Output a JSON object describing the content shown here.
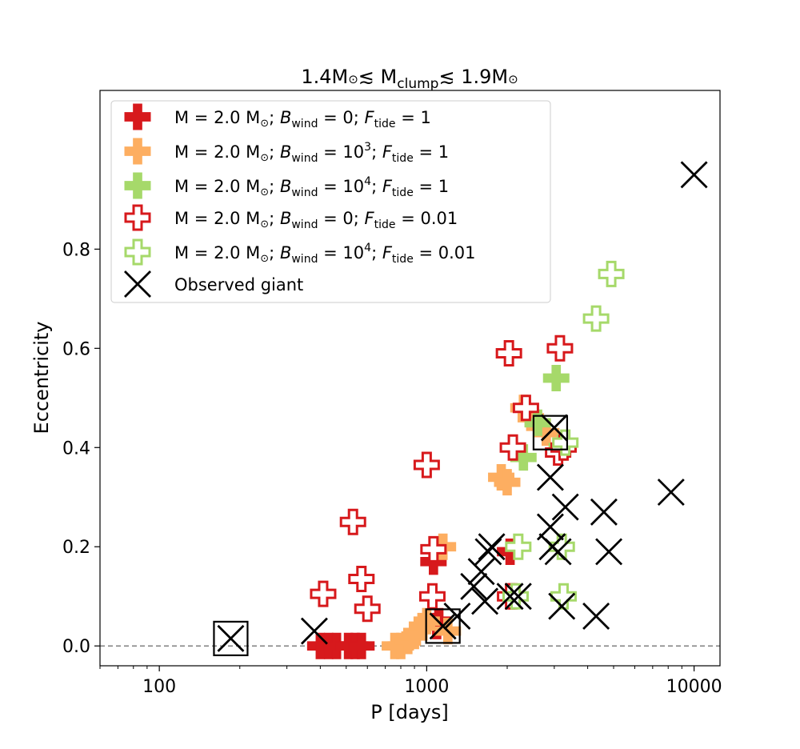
{
  "chart_data": {
    "type": "scatter",
    "title": {
      "base": "1.4M",
      "sun": "⊙",
      "mid": "≲ M",
      "sub": "clump",
      "mid2": "≲ 1.9M",
      "sun2": "⊙"
    },
    "xlabel": "P [days]",
    "ylabel": "Eccentricity",
    "xscale": "log",
    "xlim": [
      60,
      12500
    ],
    "ylim": [
      -0.04,
      1.12
    ],
    "xticks": [
      {
        "value": 100,
        "label": "100"
      },
      {
        "value": 1000,
        "label": "1000"
      },
      {
        "value": 10000,
        "label": "10000"
      }
    ],
    "yticks": [
      {
        "value": 0.0,
        "label": "0.0"
      },
      {
        "value": 0.2,
        "label": "0.2"
      },
      {
        "value": 0.4,
        "label": "0.4"
      },
      {
        "value": 0.6,
        "label": "0.6"
      },
      {
        "value": 0.8,
        "label": "0.8"
      }
    ],
    "reference_line": {
      "y": 0.0,
      "style": "dashed",
      "color": "#808080"
    },
    "colors": {
      "red": "#d7191c",
      "orange": "#fdae61",
      "green": "#a6d96a",
      "black": "#000000"
    },
    "series": [
      {
        "name": "red-filled",
        "marker": "plus-filled",
        "color": "#d7191c",
        "legend": {
          "pre": "M = 2.0 M",
          "sun": "⊙",
          "b": "B",
          "bsub": "wind",
          "bval": " = 0;  ",
          "f": "F",
          "fsub": "tide",
          "fval": " = 1",
          "sup": ""
        },
        "points": [
          [
            400,
            0.0
          ],
          [
            430,
            0.0
          ],
          [
            460,
            0.0
          ],
          [
            510,
            0.0
          ],
          [
            540,
            0.0
          ],
          [
            570,
            0.0
          ],
          [
            1060,
            0.17
          ],
          [
            1090,
            0.04
          ],
          [
            1110,
            0.05
          ],
          [
            2050,
            0.19
          ],
          [
            2100,
            0.1
          ]
        ]
      },
      {
        "name": "orange-filled",
        "marker": "plus-filled",
        "color": "#fdae61",
        "legend": {
          "pre": "M = 2.0 M",
          "sun": "⊙",
          "b": "B",
          "bsub": "wind",
          "bval": " = 10",
          "sup": "3",
          "bval2": ";  ",
          "f": "F",
          "fsub": "tide",
          "fval": " = 1"
        },
        "points": [
          [
            760,
            0.0
          ],
          [
            800,
            0.0
          ],
          [
            850,
            0.01
          ],
          [
            900,
            0.02
          ],
          [
            960,
            0.04
          ],
          [
            1000,
            0.05
          ],
          [
            1150,
            0.2
          ],
          [
            1200,
            0.03
          ],
          [
            1900,
            0.34
          ],
          [
            2000,
            0.33
          ],
          [
            2300,
            0.48
          ],
          [
            2450,
            0.46
          ],
          [
            2800,
            0.43
          ]
        ]
      },
      {
        "name": "green-filled",
        "marker": "plus-filled",
        "color": "#a6d96a",
        "legend": {
          "pre": "M = 2.0 M",
          "sun": "⊙",
          "b": "B",
          "bsub": "wind",
          "bval": " = 10",
          "sup": "4",
          "bval2": ";  ",
          "f": "F",
          "fsub": "tide",
          "fval": " = 1"
        },
        "points": [
          [
            2300,
            0.38
          ],
          [
            2600,
            0.45
          ],
          [
            3050,
            0.54
          ],
          [
            3200,
            0.4
          ]
        ]
      },
      {
        "name": "red-open",
        "marker": "plus-open",
        "color": "#d7191c",
        "legend": {
          "pre": "M = 2.0 M",
          "sun": "⊙",
          "b": "B",
          "bsub": "wind",
          "bval": " = 0;  ",
          "f": "F",
          "fsub": "tide",
          "fval": " = 0.01",
          "sup": ""
        },
        "points": [
          [
            410,
            0.105
          ],
          [
            530,
            0.25
          ],
          [
            570,
            0.135
          ],
          [
            600,
            0.075
          ],
          [
            1000,
            0.365
          ],
          [
            1050,
            0.1
          ],
          [
            1060,
            0.195
          ],
          [
            2030,
            0.59
          ],
          [
            2100,
            0.4
          ],
          [
            2350,
            0.48
          ],
          [
            3100,
            0.39
          ],
          [
            3150,
            0.6
          ],
          [
            3250,
            0.4
          ],
          [
            2050,
            0.1
          ]
        ]
      },
      {
        "name": "green-open",
        "marker": "plus-open",
        "color": "#a6d96a",
        "legend": {
          "pre": "M = 2.0 M",
          "sun": "⊙",
          "b": "B",
          "bsub": "wind",
          "bval": " = 10",
          "sup": "4",
          "bval2": ";  ",
          "f": "F",
          "fsub": "tide",
          "fval": " = 0.01"
        },
        "points": [
          [
            2200,
            0.2
          ],
          [
            2150,
            0.1
          ],
          [
            3200,
            0.2
          ],
          [
            3250,
            0.1
          ],
          [
            3300,
            0.41
          ],
          [
            4300,
            0.66
          ],
          [
            4900,
            0.75
          ]
        ]
      },
      {
        "name": "observed",
        "marker": "x",
        "color": "#000000",
        "legend": {
          "label": "Observed giant"
        },
        "points": [
          [
            185,
            0.015
          ],
          [
            380,
            0.03
          ],
          [
            1150,
            0.04
          ],
          [
            1300,
            0.06
          ],
          [
            1500,
            0.12
          ],
          [
            1650,
            0.09
          ],
          [
            1600,
            0.15
          ],
          [
            1700,
            0.19
          ],
          [
            1750,
            0.2
          ],
          [
            2050,
            0.1
          ],
          [
            2200,
            0.1
          ],
          [
            2900,
            0.34
          ],
          [
            2900,
            0.24
          ],
          [
            2950,
            0.2
          ],
          [
            3000,
            0.44
          ],
          [
            3100,
            0.19
          ],
          [
            3300,
            0.28
          ],
          [
            3200,
            0.08
          ],
          [
            4300,
            0.06
          ],
          [
            4600,
            0.27
          ],
          [
            4800,
            0.19
          ],
          [
            8200,
            0.31
          ],
          [
            10000,
            0.95
          ]
        ],
        "boxed": [
          [
            185,
            0.015
          ],
          [
            1150,
            0.04
          ],
          [
            2900,
            0.43
          ]
        ]
      }
    ]
  }
}
